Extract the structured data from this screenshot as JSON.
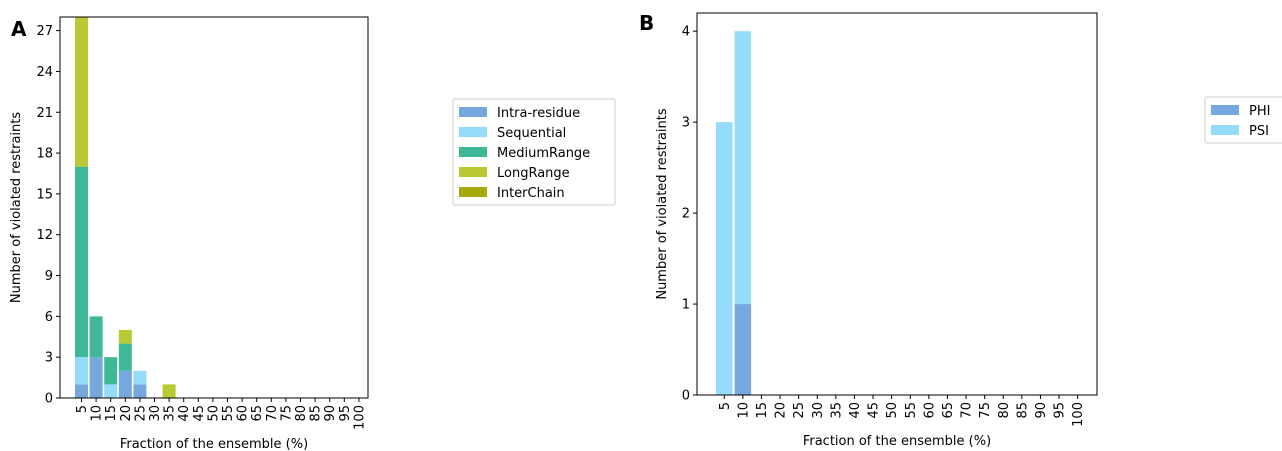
{
  "colors": {
    "Intra-residue": "#76a8dd",
    "Sequential": "#94dcfa",
    "MediumRange": "#3fb897",
    "LongRange": "#b9c933",
    "InterChain": "#a7aa0f",
    "PHI": "#76a8dd",
    "PSI": "#94dcfa"
  },
  "chart_data": [
    {
      "panel_label": "A",
      "type": "bar",
      "stacked": true,
      "xlabel": "Fraction of the ensemble (%)",
      "ylabel": "Number of violated restraints",
      "categories": [
        "5",
        "10",
        "15",
        "20",
        "25",
        "30",
        "35",
        "40",
        "45",
        "50",
        "55",
        "60",
        "65",
        "70",
        "75",
        "80",
        "85",
        "90",
        "95",
        "100"
      ],
      "ylim": [
        0,
        28
      ],
      "yticks": [
        0,
        3,
        6,
        9,
        12,
        15,
        18,
        21,
        24,
        27
      ],
      "legend_position": "outside-right-top",
      "series": [
        {
          "name": "Intra-residue",
          "values": [
            1,
            3,
            0,
            2,
            1,
            0,
            0,
            0,
            0,
            0,
            0,
            0,
            0,
            0,
            0,
            0,
            0,
            0,
            0,
            0
          ]
        },
        {
          "name": "Sequential",
          "values": [
            2,
            0,
            1,
            0,
            1,
            0,
            0,
            0,
            0,
            0,
            0,
            0,
            0,
            0,
            0,
            0,
            0,
            0,
            0,
            0
          ]
        },
        {
          "name": "MediumRange",
          "values": [
            14,
            3,
            2,
            2,
            0,
            0,
            0,
            0,
            0,
            0,
            0,
            0,
            0,
            0,
            0,
            0,
            0,
            0,
            0,
            0
          ]
        },
        {
          "name": "LongRange",
          "values": [
            11,
            0,
            0,
            1,
            0,
            0,
            1,
            0,
            0,
            0,
            0,
            0,
            0,
            0,
            0,
            0,
            0,
            0,
            0,
            0
          ]
        },
        {
          "name": "InterChain",
          "values": [
            0,
            0,
            0,
            0,
            0,
            0,
            0,
            0,
            0,
            0,
            0,
            0,
            0,
            0,
            0,
            0,
            0,
            0,
            0,
            0
          ]
        }
      ]
    },
    {
      "panel_label": "B",
      "type": "bar",
      "stacked": true,
      "xlabel": "Fraction of the ensemble (%)",
      "ylabel": "Number of violated restraints",
      "categories": [
        "5",
        "10",
        "15",
        "20",
        "25",
        "30",
        "35",
        "40",
        "45",
        "50",
        "55",
        "60",
        "65",
        "70",
        "75",
        "80",
        "85",
        "90",
        "95",
        "100"
      ],
      "ylim": [
        0,
        4.2
      ],
      "yticks": [
        0,
        1,
        2,
        3,
        4
      ],
      "legend_position": "outside-right-top",
      "series": [
        {
          "name": "PHI",
          "values": [
            0,
            1,
            0,
            0,
            0,
            0,
            0,
            0,
            0,
            0,
            0,
            0,
            0,
            0,
            0,
            0,
            0,
            0,
            0,
            0
          ]
        },
        {
          "name": "PSI",
          "values": [
            3,
            3,
            0,
            0,
            0,
            0,
            0,
            0,
            0,
            0,
            0,
            0,
            0,
            0,
            0,
            0,
            0,
            0,
            0,
            0
          ]
        }
      ]
    }
  ]
}
